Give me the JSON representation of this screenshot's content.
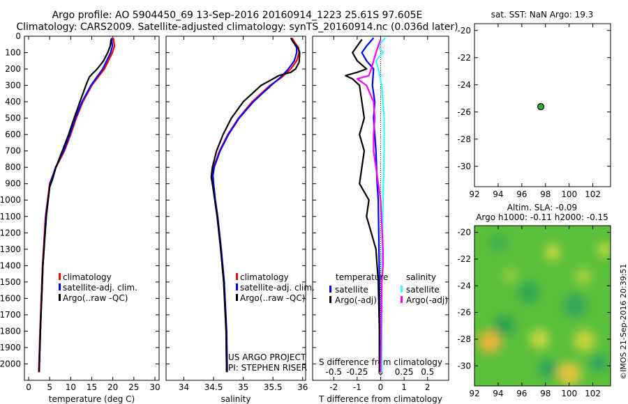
{
  "title_line1": "Argo profile: AO 5904450_69 13-Sep-2016 20160914_1223 25.61S 97.605E",
  "title_line2": "Climatology: CARS2009. Satellite-adjusted climatology: synTS_20160914.nc (0.036d later)",
  "credit_vertical": "©IMOS 21-Sep-2016 20:39:51",
  "colors": {
    "climatology": "#ff0000",
    "satellite": "#0000ff",
    "argo": "#000000",
    "sal_satellite": "#33ffff",
    "sal_argo": "#ff00ff",
    "map_marker": "#33aa33"
  },
  "chart_data": [
    {
      "type": "line",
      "id": "temperature",
      "xlabel": "temperature (deg C)",
      "xlim": [
        -1,
        31
      ],
      "ylim": [
        0,
        2100
      ],
      "y_inverted": true,
      "xticks": [
        0,
        5,
        10,
        15,
        20,
        25,
        30
      ],
      "yticks": [
        0,
        100,
        200,
        300,
        400,
        500,
        600,
        700,
        800,
        900,
        1000,
        1100,
        1200,
        1300,
        1400,
        1500,
        1600,
        1700,
        1800,
        1900,
        2000
      ],
      "legend": [
        "climatology",
        "satellite-adj. clim.",
        "Argo(..raw -QC)"
      ],
      "series": [
        {
          "name": "climatology",
          "y": [
            2050,
            1800,
            1400,
            1100,
            900,
            800,
            700,
            600,
            500,
            400,
            300,
            250,
            200,
            100,
            60,
            10
          ],
          "x": [
            2.4,
            2.7,
            3.3,
            4.0,
            5.0,
            6.5,
            8.5,
            10.0,
            11.3,
            12.9,
            15.0,
            16.5,
            18.0,
            19.9,
            20.4,
            20.1
          ]
        },
        {
          "name": "satellite-adj. clim.",
          "y": [
            2050,
            1800,
            1400,
            1100,
            900,
            800,
            700,
            600,
            500,
            400,
            300,
            250,
            200,
            100,
            60,
            10
          ],
          "x": [
            2.5,
            2.8,
            3.4,
            4.1,
            5.1,
            6.4,
            8.3,
            9.8,
            11.1,
            12.7,
            14.8,
            16.2,
            17.6,
            19.5,
            19.9,
            19.7
          ]
        },
        {
          "name": "Argo(..raw -QC)",
          "y": [
            2050,
            1800,
            1400,
            1100,
            920,
            880,
            800,
            700,
            600,
            500,
            400,
            300,
            250,
            230,
            200,
            150,
            100,
            60,
            20
          ],
          "x": [
            2.5,
            2.8,
            3.4,
            4.2,
            5.0,
            5.6,
            6.5,
            8.0,
            9.5,
            10.8,
            12.2,
            13.6,
            14.4,
            15.1,
            16.3,
            17.8,
            18.8,
            19.4,
            19.6
          ]
        }
      ]
    },
    {
      "type": "line",
      "id": "salinity",
      "xlabel": "salinity",
      "xlim": [
        33.7,
        36.05
      ],
      "ylim": [
        0,
        2100
      ],
      "y_inverted": true,
      "xticks": [
        34,
        34.5,
        35,
        35.5,
        36
      ],
      "xtick_labels": [
        "34",
        "34.5",
        "35",
        "35.5",
        "36"
      ],
      "legend": [
        "climatology",
        "satellite-adj. clim.",
        "Argo(..raw -QC)"
      ],
      "annotation": [
        "US ARGO PROJECT",
        "PI: STEPHEN RISER"
      ],
      "series": [
        {
          "name": "climatology",
          "y": [
            2050,
            1800,
            1500,
            1300,
            1100,
            1000,
            900,
            850,
            800,
            700,
            600,
            500,
            400,
            300,
            250,
            200,
            150,
            100,
            70,
            40,
            10
          ],
          "x": [
            34.72,
            34.71,
            34.67,
            34.62,
            34.56,
            34.52,
            34.49,
            34.48,
            34.5,
            34.6,
            34.74,
            34.92,
            35.15,
            35.45,
            35.65,
            35.8,
            35.9,
            35.94,
            35.93,
            35.87,
            35.82
          ]
        },
        {
          "name": "satellite-adj. clim.",
          "y": [
            2050,
            1800,
            1500,
            1300,
            1100,
            1000,
            900,
            850,
            800,
            700,
            600,
            500,
            400,
            300,
            250,
            200,
            150,
            100,
            70,
            40,
            10
          ],
          "x": [
            34.73,
            34.72,
            34.68,
            34.63,
            34.57,
            34.53,
            34.5,
            34.49,
            34.51,
            34.61,
            34.75,
            34.93,
            35.17,
            35.47,
            35.63,
            35.76,
            35.86,
            35.9,
            35.9,
            35.85,
            35.8
          ]
        },
        {
          "name": "Argo(..raw -QC)",
          "y": [
            2050,
            1800,
            1500,
            1300,
            1100,
            1000,
            900,
            860,
            800,
            700,
            600,
            500,
            400,
            300,
            240,
            220,
            200,
            160,
            100,
            70,
            40,
            10
          ],
          "x": [
            34.72,
            34.71,
            34.67,
            34.62,
            34.56,
            34.52,
            34.48,
            34.46,
            34.48,
            34.55,
            34.66,
            34.8,
            35.0,
            35.3,
            35.6,
            35.8,
            35.88,
            35.94,
            35.95,
            35.92,
            35.85,
            35.8
          ]
        }
      ]
    },
    {
      "type": "line",
      "id": "difference",
      "xlabel": "T difference from climatology",
      "x2label": "S difference from climatology",
      "xlim": [
        -2.9,
        2.9
      ],
      "ylim": [
        0,
        2100
      ],
      "y_inverted": true,
      "xticks": [
        -2,
        -1,
        0,
        1,
        2
      ],
      "x2ticks": [
        -0.5,
        -0.25,
        0,
        0.25,
        0.5
      ],
      "x2tick_labels": [
        "-0.5",
        "-0.25",
        "0",
        "0.25",
        "0.5"
      ],
      "legend_temperature_title": "temperature",
      "legend_salinity_title": "salinity",
      "legend_temperature": [
        "satellite",
        "Argo(-adj)"
      ],
      "legend_salinity": [
        "satellite",
        "Argo(-adj)"
      ],
      "series": [
        {
          "name": "temperature satellite",
          "y": [
            2050,
            1500,
            1000,
            900,
            700,
            500,
            400,
            300,
            200,
            150,
            100,
            60,
            10
          ],
          "x": [
            -0.05,
            -0.05,
            -0.1,
            -0.15,
            -0.2,
            -0.3,
            -0.25,
            -0.35,
            -0.3,
            -0.6,
            -0.8,
            -0.6,
            -0.3
          ]
        },
        {
          "name": "temperature Argo(-adj)",
          "y": [
            2050,
            1800,
            1500,
            1300,
            1200,
            1100,
            1000,
            900,
            800,
            700,
            600,
            500,
            400,
            300,
            260,
            240,
            220,
            200,
            150,
            100,
            60,
            20
          ],
          "x": [
            -0.05,
            -0.05,
            -0.1,
            -0.2,
            -0.4,
            -0.6,
            -0.5,
            -0.9,
            -0.8,
            -0.7,
            -0.9,
            -0.7,
            -0.8,
            -0.9,
            -1.2,
            -1.5,
            -1.0,
            -0.6,
            -1.0,
            -1.2,
            -1.0,
            -0.8
          ]
        },
        {
          "name": "salinity satellite",
          "y": [
            2050,
            1500,
            1000,
            900,
            700,
            500,
            400,
            300,
            200,
            150,
            100,
            60,
            10
          ],
          "x": [
            0.05,
            0.05,
            0.1,
            0.12,
            0.15,
            0.15,
            0.1,
            0.05,
            -0.1,
            -0.2,
            0.1,
            -0.1,
            0.2
          ]
        },
        {
          "name": "salinity Argo(-adj)",
          "y": [
            2050,
            1500,
            1400,
            1300,
            1000,
            900,
            800,
            700,
            600,
            500,
            400,
            300,
            280,
            260,
            240,
            200,
            150,
            100,
            60,
            20
          ],
          "x": [
            0.0,
            0.05,
            0.1,
            0.1,
            0.0,
            -0.1,
            -0.2,
            -0.3,
            -0.3,
            -0.25,
            -0.3,
            -0.6,
            -0.8,
            -1.0,
            -0.5,
            -0.4,
            -0.3,
            -0.2,
            -0.1,
            0.0
          ]
        }
      ]
    },
    {
      "type": "scatter",
      "id": "location_map",
      "title": "sat. SST: NaN Argo: 19.3",
      "xlim": [
        92,
        103.5
      ],
      "ylim": [
        -31.5,
        -19.5
      ],
      "xticks": [
        92,
        94,
        96,
        98,
        100,
        102
      ],
      "yticks": [
        -20,
        -22,
        -24,
        -26,
        -28,
        -30
      ],
      "points": [
        {
          "x": 97.605,
          "y": -25.61
        }
      ]
    },
    {
      "type": "heatmap",
      "id": "sla_map",
      "title_line1": "Altim. SLA: -0.09",
      "title_line2": "Argo h1000: -0.11 h2000: -0.15",
      "xlim": [
        92,
        103.5
      ],
      "ylim": [
        -31.5,
        -19.5
      ],
      "xticks": [
        92,
        94,
        96,
        98,
        100,
        102
      ],
      "yticks": [
        -20,
        -22,
        -24,
        -26,
        -28,
        -30
      ],
      "base_color": "#5bc03c",
      "blobs": [
        {
          "x": 93.3,
          "y": -28.2,
          "r": 1.0,
          "color": "#e6b23a"
        },
        {
          "x": 100,
          "y": -30.6,
          "r": 1.0,
          "color": "#e3c53d"
        },
        {
          "x": 101.3,
          "y": -28.1,
          "r": 0.9,
          "color": "#c9d43e"
        },
        {
          "x": 97.5,
          "y": -28.0,
          "r": 0.8,
          "color": "#cdd83f"
        },
        {
          "x": 98.6,
          "y": -21.5,
          "r": 0.7,
          "color": "#c2d63f"
        },
        {
          "x": 103,
          "y": -21.3,
          "r": 0.6,
          "color": "#c8d83f"
        },
        {
          "x": 96.6,
          "y": -24.5,
          "r": 0.9,
          "color": "#2fa653"
        },
        {
          "x": 94.5,
          "y": -27.0,
          "r": 0.9,
          "color": "#2fa24f"
        },
        {
          "x": 100.5,
          "y": -25.5,
          "r": 1.0,
          "color": "#35a65c"
        },
        {
          "x": 98.2,
          "y": -30.2,
          "r": 0.8,
          "color": "#31a35a"
        },
        {
          "x": 94.0,
          "y": -20.8,
          "r": 0.7,
          "color": "#3cab4f"
        },
        {
          "x": 102.5,
          "y": -29.8,
          "r": 0.7,
          "color": "#2e9f63"
        },
        {
          "x": 95.0,
          "y": -23.2,
          "r": 0.6,
          "color": "#9ccd3f"
        },
        {
          "x": 101.2,
          "y": -23.3,
          "r": 0.7,
          "color": "#a8d23e"
        }
      ]
    }
  ]
}
